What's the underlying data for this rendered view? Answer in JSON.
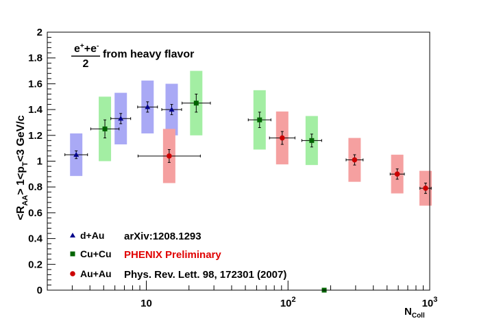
{
  "chart_data": {
    "type": "scatter",
    "xscale": "log",
    "xlim": [
      2,
      1000
    ],
    "ylim": [
      0,
      2
    ],
    "xlabel": {
      "main": "N",
      "sub": "Coll"
    },
    "ylabel": "<R_AA> 1<p_T<3 GeV/c",
    "yticks": [
      "0",
      "0.2",
      "0.4",
      "0.6",
      "0.8",
      "1",
      "1.2",
      "1.4",
      "1.6",
      "1.8",
      "2"
    ],
    "xticks": [
      {
        "value": 10,
        "base": "10",
        "exp": ""
      },
      {
        "value": 100,
        "base": "10",
        "exp": "2"
      },
      {
        "value": 1000,
        "base": "10",
        "exp": "3"
      }
    ],
    "title": {
      "numerator": "e+e-",
      "denominator": "2",
      "suffix": "from heavy flavor"
    },
    "grid": false,
    "legend_placement": "bottom-left",
    "series": [
      {
        "name": "d+Au",
        "marker": "triangle",
        "color": "#00008b",
        "band_color": "#a9a9f5",
        "points": [
          {
            "x": 3.2,
            "y": 1.05,
            "stat": 0.03,
            "sys": 0.165,
            "xerr": 0.08
          },
          {
            "x": 6.6,
            "y": 1.33,
            "stat": 0.04,
            "sys": 0.2,
            "xerr": 0.07
          },
          {
            "x": 10.2,
            "y": 1.42,
            "stat": 0.04,
            "sys": 0.205,
            "xerr": 0.07
          },
          {
            "x": 15.1,
            "y": 1.4,
            "stat": 0.04,
            "sys": 0.2,
            "xerr": 0.07
          }
        ]
      },
      {
        "name": "Cu+Cu",
        "marker": "square",
        "color": "#006400",
        "band_color": "#a3eea3",
        "points": [
          {
            "x": 5.1,
            "y": 1.25,
            "stat": 0.07,
            "sys": 0.25,
            "xerr": 0.1
          },
          {
            "x": 22.5,
            "y": 1.45,
            "stat": 0.07,
            "sys": 0.25,
            "xerr": 0.1
          },
          {
            "x": 63,
            "y": 1.32,
            "stat": 0.06,
            "sys": 0.23,
            "xerr": 0.08
          },
          {
            "x": 147,
            "y": 1.16,
            "stat": 0.05,
            "sys": 0.19,
            "xerr": 0.07
          },
          {
            "x": 180,
            "y": 0.0,
            "stat": 0.0,
            "sys": 0.0,
            "xerr": 0.0
          }
        ]
      },
      {
        "name": "Au+Au",
        "marker": "circle",
        "color": "#cc0000",
        "band_color": "#f5a0a0",
        "points": [
          {
            "x": 14.5,
            "y": 1.04,
            "stat": 0.05,
            "sys": 0.21,
            "xerr": 0.22
          },
          {
            "x": 91,
            "y": 1.18,
            "stat": 0.05,
            "sys": 0.205,
            "xerr": 0.09
          },
          {
            "x": 295,
            "y": 1.01,
            "stat": 0.04,
            "sys": 0.17,
            "xerr": 0.06
          },
          {
            "x": 590,
            "y": 0.9,
            "stat": 0.04,
            "sys": 0.15,
            "xerr": 0.05
          },
          {
            "x": 935,
            "y": 0.79,
            "stat": 0.04,
            "sys": 0.135,
            "xerr": 0.04
          }
        ]
      }
    ],
    "legend": [
      {
        "series": "d+Au",
        "note": "arXiv:1208.1293",
        "note_color": "#000000"
      },
      {
        "series": "Cu+Cu",
        "note": "PHENIX Preliminary",
        "note_color": "#e00000"
      },
      {
        "series": "Au+Au",
        "note": "Phys. Rev. Lett. 98, 172301 (2007)",
        "note_color": "#000000"
      }
    ]
  }
}
